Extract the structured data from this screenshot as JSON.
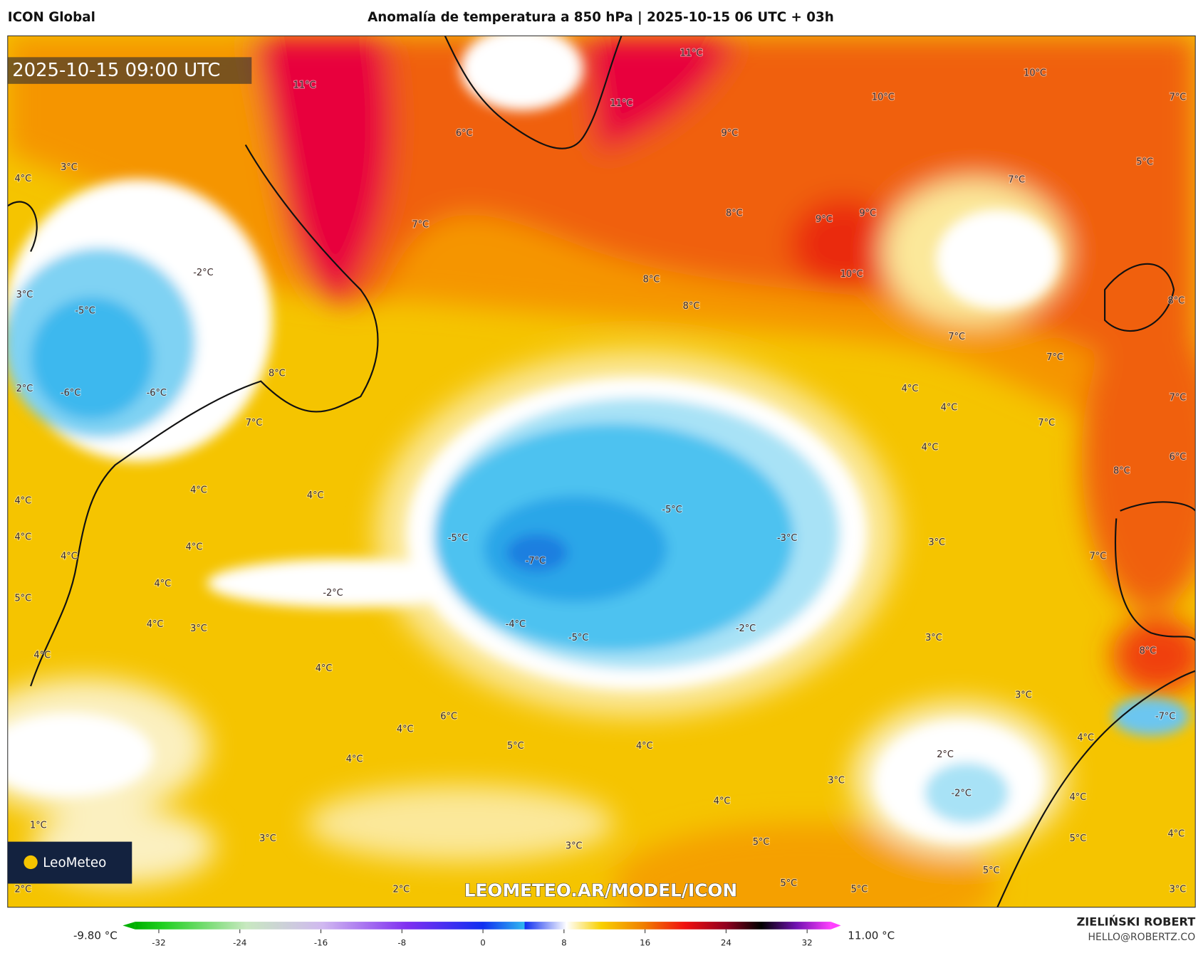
{
  "header": {
    "model": "ICON Global",
    "title": "Anomalía de temperatura a 850 hPa | 2025-10-15 06 UTC + 03h"
  },
  "map": {
    "valid_time": "2025-10-15 09:00 UTC",
    "watermark": "LEOMETEO.AR/MODEL/ICON",
    "logo": "LeoMeteo",
    "labels": [
      "11°C",
      "11°C",
      "11°C",
      "10°C",
      "10°C",
      "7°C",
      "9°C",
      "6°C",
      "5°C",
      "3°C",
      "4°C",
      "7°C",
      "8°C",
      "9°C",
      "9°C",
      "7°C",
      "-2°C",
      "8°C",
      "10°C",
      "3°C",
      "-5°C",
      "8°C",
      "8°C",
      "7°C",
      "7°C",
      "8°C",
      "4°C",
      "2°C",
      "-6°C",
      "-6°C",
      "7°C",
      "4°C",
      "7°C",
      "7°C",
      "4°C",
      "6°C",
      "8°C",
      "4°C",
      "4°C",
      "4°C",
      "-5°C",
      "4°C",
      "-5°C",
      "-3°C",
      "3°C",
      "4°C",
      "7°C",
      "4°C",
      "-7°C",
      "4°C",
      "-2°C",
      "5°C",
      "4°C",
      "3°C",
      "-4°C",
      "-2°C",
      "-5°C",
      "3°C",
      "8°C",
      "4°C",
      "4°C",
      "3°C",
      "-7°C",
      "6°C",
      "4°C",
      "4°C",
      "5°C",
      "4°C",
      "2°C",
      "4°C",
      "3°C",
      "-2°C",
      "4°C",
      "4°C",
      "1°C",
      "4°C",
      "3°C",
      "5°C",
      "5°C",
      "3°C",
      "5°C",
      "5°C",
      "2°C",
      "2°C",
      "5°C",
      "3°C"
    ]
  },
  "colorbar": {
    "min_label": "-9.80 °C",
    "max_label": "11.00 °C",
    "ticks": [
      -32,
      -24,
      -16,
      -8,
      0,
      8,
      16,
      24,
      32
    ]
  },
  "credit": {
    "author": "ZIELIŃSKI ROBERT",
    "email": "HELLO@ROBERTZ.CO"
  }
}
